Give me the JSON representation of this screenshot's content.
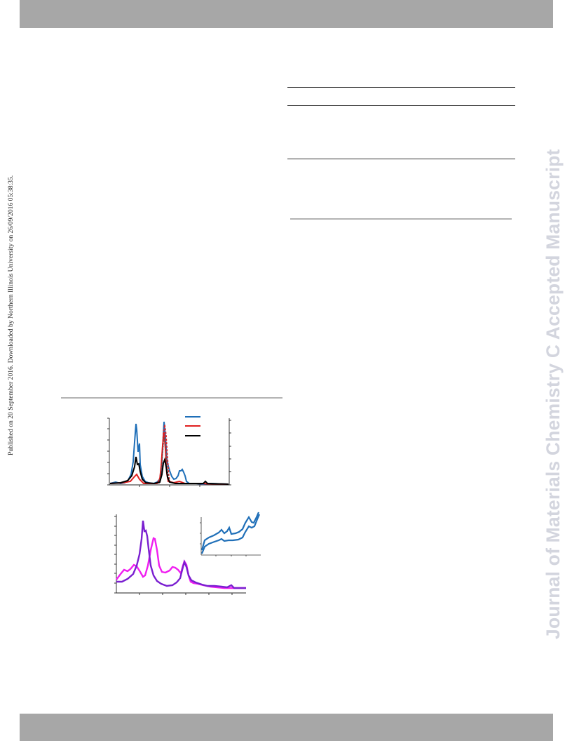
{
  "side_note": "Published on 20 September 2016. Downloaded by Northern Illinois University on 26/09/2016 05:38:35.",
  "watermark": "Journal of Materials Chemistry C Accepted Manuscript",
  "figure": {
    "top_panel": {
      "legend_colors": [
        "#1f6fb8",
        "#e01f1f",
        "#000000"
      ]
    },
    "bottom_panel": {
      "series_colors": [
        "#7a1fd0",
        "#f01ef0"
      ],
      "inset_color": "#1f6fb8"
    }
  }
}
